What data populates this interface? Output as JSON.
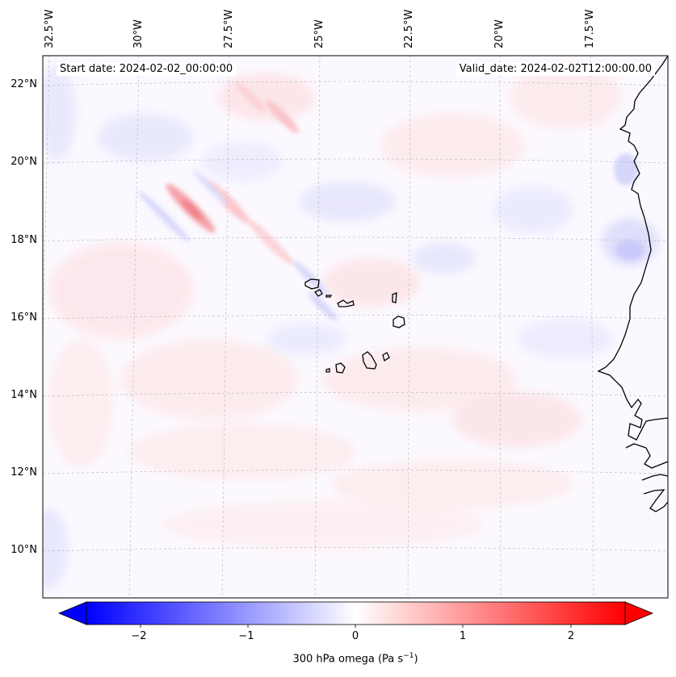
{
  "map": {
    "start_date": "Start date: 2024-02-02_00:00:00",
    "valid_date": "Valid_date: 2024-02-02T12:00:00.00",
    "lon_labels": [
      "32.5°W",
      "30°W",
      "27.5°W",
      "25°W",
      "22.5°W",
      "20°W",
      "17.5°W"
    ],
    "lat_labels": [
      "22°N",
      "20°N",
      "18°N",
      "16°N",
      "14°N",
      "12°N",
      "10°N"
    ],
    "colorbar": {
      "ticks": [
        "−2",
        "−1",
        "0",
        "1",
        "2"
      ],
      "label_text": "300 hPa omega (Pa s",
      "label_sup": "−1",
      "label_close": ")",
      "low_color": "#0000ff",
      "mid_color": "#ffffff",
      "high_color": "#ff0000"
    }
  }
}
